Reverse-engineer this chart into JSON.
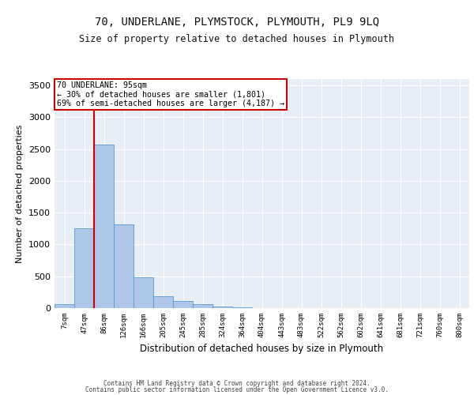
{
  "title": "70, UNDERLANE, PLYMSTOCK, PLYMOUTH, PL9 9LQ",
  "subtitle": "Size of property relative to detached houses in Plymouth",
  "xlabel": "Distribution of detached houses by size in Plymouth",
  "ylabel": "Number of detached properties",
  "footer1": "Contains HM Land Registry data © Crown copyright and database right 2024.",
  "footer2": "Contains public sector information licensed under the Open Government Licence v3.0.",
  "annotation_line1": "70 UNDERLANE: 95sqm",
  "annotation_line2": "← 30% of detached houses are smaller (1,801)",
  "annotation_line3": "69% of semi-detached houses are larger (4,187) →",
  "bar_color": "#aec6e8",
  "bar_edge_color": "#5a99d4",
  "background_color": "#e8eef5",
  "grid_color": "#ffffff",
  "red_line_color": "#cc0000",
  "annotation_box_color": "#cc0000",
  "ylim": [
    0,
    3600
  ],
  "yticks": [
    0,
    500,
    1000,
    1500,
    2000,
    2500,
    3000,
    3500
  ],
  "categories": [
    "7sqm",
    "47sqm",
    "86sqm",
    "126sqm",
    "166sqm",
    "205sqm",
    "245sqm",
    "285sqm",
    "324sqm",
    "364sqm",
    "404sqm",
    "443sqm",
    "483sqm",
    "522sqm",
    "562sqm",
    "602sqm",
    "641sqm",
    "681sqm",
    "721sqm",
    "760sqm",
    "800sqm"
  ],
  "values": [
    60,
    1250,
    2570,
    1320,
    490,
    185,
    110,
    60,
    25,
    10,
    5,
    3,
    2,
    1,
    1,
    1,
    1,
    0,
    0,
    0,
    0
  ],
  "red_line_x": 1.5
}
